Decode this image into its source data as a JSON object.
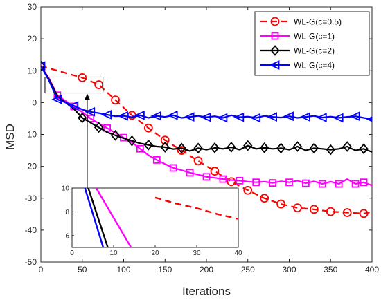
{
  "chart_data": {
    "type": "line",
    "xlabel": "Iterations",
    "ylabel": "MSD",
    "xlim": [
      0,
      400
    ],
    "ylim": [
      -50,
      30
    ],
    "xticks": [
      0,
      50,
      100,
      150,
      200,
      250,
      300,
      350,
      400
    ],
    "yticks": [
      -50,
      -40,
      -30,
      -20,
      -10,
      0,
      10,
      20,
      30
    ],
    "grid": false,
    "legend_position": "top-right",
    "zoom_box": {
      "x": [
        5,
        75
      ],
      "y": [
        3,
        8
      ]
    },
    "series": [
      {
        "name": "WL-G(c=0.5)",
        "color": "#ff0000",
        "line_style": "dashed",
        "marker": "circle",
        "x": [
          0,
          50,
          70,
          90,
          110,
          130,
          150,
          170,
          190,
          210,
          230,
          250,
          270,
          290,
          310,
          330,
          350,
          370,
          390,
          400
        ],
        "y": [
          11.5,
          7.8,
          5.6,
          0.8,
          -4.0,
          -8.0,
          -11.8,
          -15.0,
          -18.3,
          -21.5,
          -24.8,
          -27.5,
          -30.0,
          -31.8,
          -33.0,
          -33.5,
          -34.2,
          -34.5,
          -34.8,
          -34.3
        ],
        "markers": [
          [
            0,
            11.5
          ],
          [
            50,
            7.8
          ],
          [
            70,
            5.6
          ],
          [
            90,
            0.8
          ],
          [
            110,
            -4.0
          ],
          [
            130,
            -8.0
          ],
          [
            150,
            -11.8
          ],
          [
            170,
            -15.0
          ],
          [
            190,
            -18.3
          ],
          [
            210,
            -21.5
          ],
          [
            230,
            -24.8
          ],
          [
            250,
            -27.5
          ],
          [
            270,
            -30.0
          ],
          [
            290,
            -31.8
          ],
          [
            310,
            -33.0
          ],
          [
            330,
            -33.5
          ],
          [
            350,
            -34.2
          ],
          [
            370,
            -34.5
          ],
          [
            390,
            -34.8
          ]
        ]
      },
      {
        "name": "WL-G(c=1)",
        "color": "#ff00ff",
        "line_style": "solid",
        "marker": "square",
        "x": [
          0,
          10,
          20,
          30,
          40,
          50,
          60,
          70,
          80,
          90,
          100,
          110,
          120,
          130,
          140,
          150,
          160,
          170,
          180,
          190,
          200,
          210,
          220,
          230,
          240,
          250,
          260,
          270,
          280,
          290,
          300,
          310,
          320,
          330,
          340,
          350,
          360,
          370,
          380,
          390,
          400
        ],
        "y": [
          11.5,
          7.5,
          2.3,
          0.5,
          -1.2,
          -3.0,
          -5.0,
          -6.5,
          -8.0,
          -9.5,
          -11.0,
          -12.5,
          -14.5,
          -16.5,
          -18.0,
          -19.3,
          -20.5,
          -21.2,
          -22.0,
          -22.6,
          -23.3,
          -23.6,
          -24.0,
          -24.3,
          -24.5,
          -24.8,
          -25.0,
          -24.8,
          -25.2,
          -24.7,
          -25.0,
          -24.5,
          -25.3,
          -24.7,
          -25.5,
          -24.8,
          -25.5,
          -24.0,
          -25.5,
          -25.0,
          -26.0
        ],
        "markers": [
          [
            0,
            11.5
          ],
          [
            20,
            2.3
          ],
          [
            40,
            -1.2
          ],
          [
            60,
            -5.0
          ],
          [
            80,
            -8.0
          ],
          [
            100,
            -11.0
          ],
          [
            120,
            -14.5
          ],
          [
            140,
            -18.0
          ],
          [
            160,
            -20.5
          ],
          [
            180,
            -22.0
          ],
          [
            200,
            -23.3
          ],
          [
            220,
            -24.0
          ],
          [
            240,
            -24.5
          ],
          [
            260,
            -25.0
          ],
          [
            280,
            -25.2
          ],
          [
            300,
            -25.0
          ],
          [
            320,
            -25.3
          ],
          [
            340,
            -25.5
          ],
          [
            360,
            -25.5
          ],
          [
            380,
            -25.5
          ],
          [
            390,
            -25.0
          ]
        ]
      },
      {
        "name": "WL-G(c=2)",
        "color": "#000000",
        "line_style": "solid",
        "marker": "diamond",
        "x": [
          0,
          10,
          20,
          30,
          40,
          50,
          60,
          70,
          80,
          90,
          100,
          110,
          120,
          130,
          140,
          150,
          160,
          170,
          180,
          190,
          200,
          210,
          220,
          230,
          240,
          250,
          260,
          270,
          280,
          290,
          300,
          310,
          320,
          330,
          340,
          350,
          360,
          370,
          380,
          390,
          400
        ],
        "y": [
          11.5,
          7.2,
          2.0,
          0.0,
          -2.0,
          -4.8,
          -6.3,
          -7.8,
          -9.3,
          -10.3,
          -11.2,
          -12.0,
          -12.8,
          -13.3,
          -13.8,
          -14.0,
          -14.6,
          -14.3,
          -15.2,
          -14.3,
          -14.8,
          -14.2,
          -14.5,
          -14.0,
          -14.8,
          -13.5,
          -14.5,
          -14.2,
          -14.5,
          -14.3,
          -14.8,
          -13.8,
          -15.0,
          -14.3,
          -14.5,
          -14.8,
          -14.5,
          -13.8,
          -15.0,
          -14.5,
          -15.5
        ],
        "markers": [
          [
            0,
            11.5
          ],
          [
            50,
            -4.8
          ],
          [
            70,
            -7.8
          ],
          [
            90,
            -10.3
          ],
          [
            110,
            -12.0
          ],
          [
            130,
            -13.3
          ],
          [
            150,
            -14.0
          ],
          [
            170,
            -14.3
          ],
          [
            190,
            -14.3
          ],
          [
            210,
            -14.2
          ],
          [
            230,
            -14.0
          ],
          [
            250,
            -13.5
          ],
          [
            270,
            -14.2
          ],
          [
            290,
            -14.3
          ],
          [
            310,
            -13.8
          ],
          [
            330,
            -14.3
          ],
          [
            350,
            -14.8
          ],
          [
            370,
            -13.8
          ],
          [
            390,
            -14.5
          ]
        ]
      },
      {
        "name": "WL-G(c=4)",
        "color": "#0000ff",
        "line_style": "solid",
        "marker": "triangle-left",
        "x": [
          0,
          10,
          20,
          30,
          40,
          50,
          60,
          70,
          80,
          90,
          100,
          110,
          120,
          130,
          140,
          150,
          160,
          170,
          180,
          190,
          200,
          210,
          220,
          230,
          240,
          250,
          260,
          270,
          280,
          290,
          300,
          310,
          320,
          330,
          340,
          350,
          360,
          370,
          380,
          390,
          400
        ],
        "y": [
          11.5,
          6.8,
          1.0,
          0.0,
          -1.0,
          -2.2,
          -2.9,
          -3.3,
          -3.8,
          -4.3,
          -4.2,
          -4.6,
          -4.0,
          -4.8,
          -4.2,
          -4.5,
          -4.0,
          -4.8,
          -4.5,
          -4.2,
          -4.6,
          -4.3,
          -4.8,
          -4.0,
          -4.6,
          -4.4,
          -4.8,
          -4.2,
          -4.5,
          -4.7,
          -4.3,
          -4.8,
          -4.5,
          -4.2,
          -4.7,
          -4.4,
          -4.8,
          -4.5,
          -4.3,
          -4.8,
          -5.2
        ],
        "markers": [
          [
            0,
            11.5
          ],
          [
            20,
            1.0
          ],
          [
            40,
            -1.0
          ],
          [
            60,
            -2.9
          ],
          [
            80,
            -3.8
          ],
          [
            100,
            -4.2
          ],
          [
            120,
            -4.0
          ],
          [
            140,
            -4.2
          ],
          [
            160,
            -4.0
          ],
          [
            180,
            -4.5
          ],
          [
            200,
            -4.6
          ],
          [
            220,
            -4.8
          ],
          [
            240,
            -4.6
          ],
          [
            260,
            -4.8
          ],
          [
            280,
            -4.5
          ],
          [
            300,
            -4.3
          ],
          [
            320,
            -4.5
          ],
          [
            340,
            -4.7
          ],
          [
            360,
            -4.8
          ],
          [
            380,
            -4.3
          ],
          [
            400,
            -5.2
          ]
        ]
      }
    ],
    "inset": {
      "xlim": [
        0,
        40
      ],
      "ylim": [
        5,
        10
      ],
      "xticks": [
        0,
        10,
        20,
        30,
        40
      ],
      "yticks": [
        6,
        8,
        10
      ],
      "series": [
        {
          "color": "#0000ff",
          "x": [
            3.1,
            7.5
          ],
          "y": [
            10,
            5
          ]
        },
        {
          "color": "#000000",
          "x": [
            3.9,
            8.6
          ],
          "y": [
            10,
            5
          ]
        },
        {
          "color": "#ff00ff",
          "x": [
            5.8,
            14.2
          ],
          "y": [
            10,
            5
          ]
        },
        {
          "color": "#ff0000",
          "x": [
            20,
            25,
            30,
            35,
            40
          ],
          "y": [
            9.2,
            8.7,
            8.3,
            7.8,
            7.4
          ]
        }
      ]
    }
  }
}
